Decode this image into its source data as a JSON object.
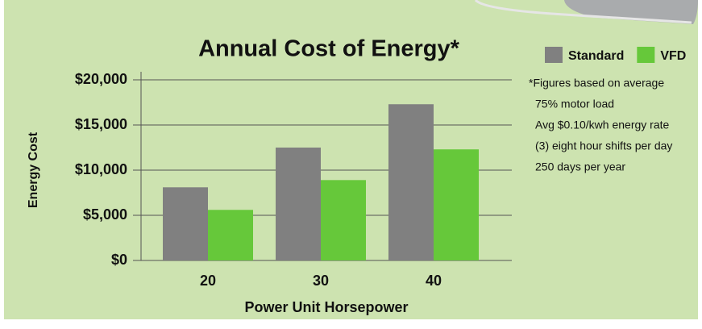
{
  "chart_data": {
    "type": "bar",
    "title": "Annual Cost of Energy*",
    "categories": [
      "20",
      "30",
      "40"
    ],
    "series": [
      {
        "name": "Standard",
        "color": "#808080",
        "values": [
          8100,
          12500,
          17300
        ]
      },
      {
        "name": "VFD",
        "color": "#66c83a",
        "values": [
          5600,
          8900,
          12300
        ]
      }
    ],
    "x_label": "Power Unit Horsepower",
    "y_label": "Energy Cost",
    "ylim": [
      0,
      20000
    ],
    "yticks": [
      {
        "value": 0,
        "label": "$0"
      },
      {
        "value": 5000,
        "label": "$5,000"
      },
      {
        "value": 10000,
        "label": "$10,000"
      },
      {
        "value": 15000,
        "label": "$15,000"
      },
      {
        "value": 20000,
        "label": "$20,000"
      }
    ],
    "grid": true,
    "legend": "top-right",
    "annotations": [
      "*Figures based on average",
      "75% motor load",
      "Avg $0.10/kwh energy rate",
      "(3) eight hour shifts per day",
      "250 days per year"
    ]
  }
}
